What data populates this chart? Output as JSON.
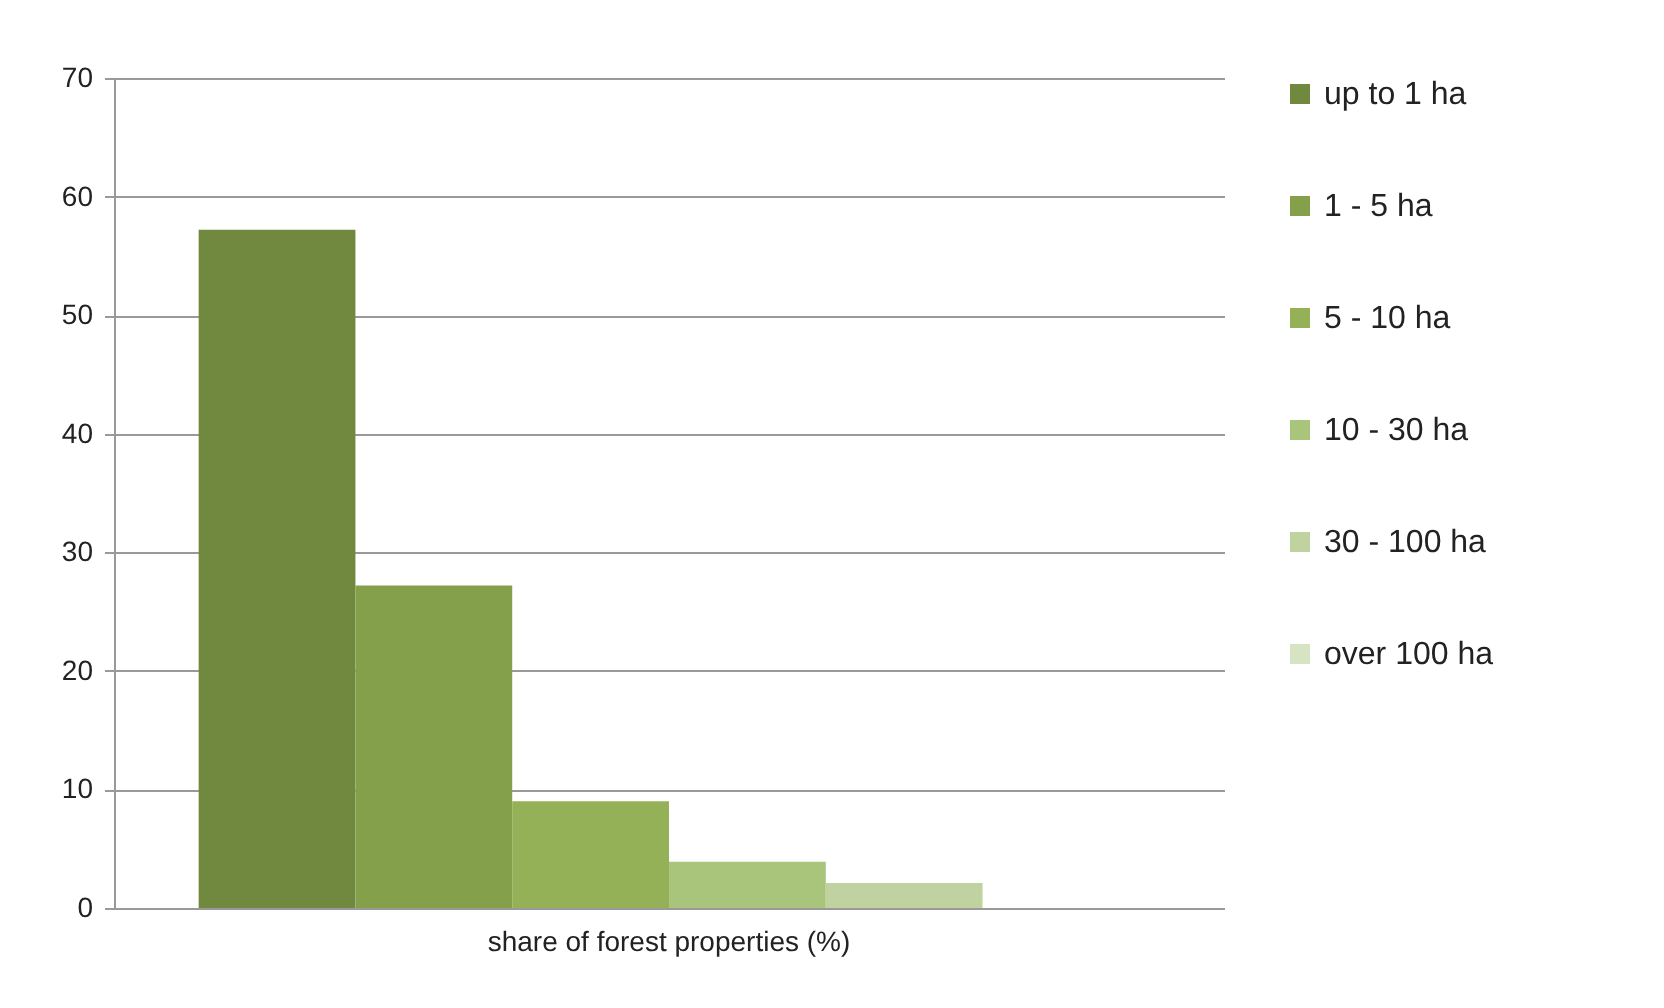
{
  "chart_data": {
    "type": "bar",
    "categories": [
      "share of forest properties (%)"
    ],
    "series": [
      {
        "name": "up to 1 ha",
        "color": "#71893f",
        "values": [
          57.2
        ]
      },
      {
        "name": "1 - 5 ha",
        "color": "#84a04b",
        "values": [
          27.2
        ]
      },
      {
        "name": "5 - 10 ha",
        "color": "#95b158",
        "values": [
          9.0
        ]
      },
      {
        "name": "10 - 30 ha",
        "color": "#a9c47b",
        "values": [
          3.9
        ]
      },
      {
        "name": "30 - 100 ha",
        "color": "#c0d2a0",
        "values": [
          2.1
        ]
      },
      {
        "name": "over 100 ha",
        "color": "#d7e4c4",
        "values": [
          0
        ]
      }
    ],
    "ylim": [
      0,
      70
    ],
    "yticks": [
      0,
      10,
      20,
      30,
      40,
      50,
      60,
      70
    ],
    "grid": "y",
    "legend": "right"
  }
}
